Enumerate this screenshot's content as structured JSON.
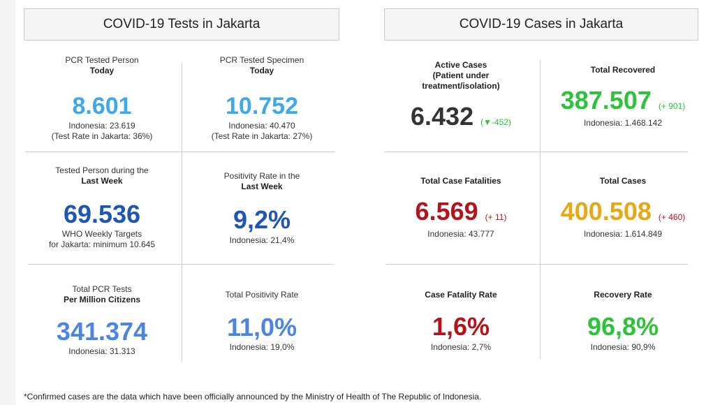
{
  "colors": {
    "light_blue": "#3fa9e6",
    "dark_blue": "#1e56b4",
    "mid_blue": "#4a86e0",
    "black": "#333333",
    "green": "#2cc23a",
    "red": "#b3141b",
    "gold": "#e6a817"
  },
  "tests": {
    "title": "COVID-19 Tests in Jakarta",
    "pcr_person": {
      "label": "PCR Tested Person",
      "label_bold": "Today",
      "value": "8.601",
      "sub1": "Indonesia: 23.619",
      "sub2": "(Test Rate in Jakarta: 36%)"
    },
    "pcr_specimen": {
      "label": "PCR Tested Specimen",
      "label_bold": "Today",
      "value": "10.752",
      "sub1": "Indonesia: 40.470",
      "sub2": "(Test Rate in Jakarta: 27%)"
    },
    "last_week": {
      "label": "Tested Person during the",
      "label_bold": "Last Week",
      "value": "69.536",
      "sub1": "WHO Weekly Targets",
      "sub2": "for Jakarta: minimum 10.645"
    },
    "positivity_week": {
      "label": "Positivity Rate in the",
      "label_bold": "Last Week",
      "value": "9,2%",
      "sub1": "Indonesia: 21,4%"
    },
    "per_million": {
      "label": "Total PCR Tests",
      "label_bold": "Per Million Citizens",
      "value": "341.374",
      "sub1": "Indonesia: 31.313"
    },
    "total_positivity": {
      "label": "Total Positivity Rate",
      "value": "11,0%",
      "sub1": "Indonesia: 19,0%"
    }
  },
  "cases": {
    "title": "COVID-19 Cases in Jakarta",
    "active": {
      "label1": "Active Cases",
      "label2": "(Patient under",
      "label3": "treatment/isolation)",
      "value": "6.432",
      "change": "(▼-452)"
    },
    "recovered": {
      "label": "Total Recovered",
      "value": "387.507",
      "change": "(+ 901)",
      "sub1": "Indonesia: 1.468.142"
    },
    "fatalities": {
      "label": "Total Case Fatalities",
      "value": "6.569",
      "change": "(+ 11)",
      "sub1": "Indonesia: 43.777"
    },
    "total": {
      "label": "Total Cases",
      "value": "400.508",
      "change": "(+ 460)",
      "sub1": "Indonesia: 1.614.849"
    },
    "cfr": {
      "label": "Case Fatality Rate",
      "value": "1,6%",
      "sub1": "Indonesia: 2,7%"
    },
    "recovery_rate": {
      "label": "Recovery Rate",
      "value": "96,8%",
      "sub1": "Indonesia: 90,9%"
    }
  },
  "footnote": "*Confirmed cases are the data which have been officially announced by the Ministry of Health of The Republic of Indonesia."
}
